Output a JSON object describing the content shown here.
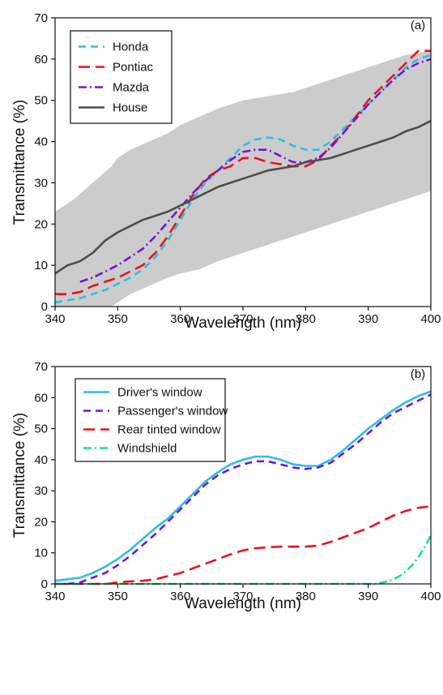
{
  "chart_data": [
    {
      "type": "line",
      "panel_label": "(a)",
      "xlabel": "Wavelength (nm)",
      "ylabel": "Transmittance (%)",
      "xlim": [
        340,
        400
      ],
      "ylim": [
        0,
        70
      ],
      "xticks": [
        340,
        350,
        360,
        370,
        380,
        390,
        400
      ],
      "yticks": [
        0,
        10,
        20,
        30,
        40,
        50,
        60,
        70
      ],
      "grid": false,
      "legend_placement": "top-left",
      "band": {
        "color": "#cccccc",
        "x": [
          340,
          343,
          346,
          349,
          350,
          352,
          355,
          358,
          360,
          363,
          366,
          370,
          374,
          378,
          380,
          384,
          388,
          392,
          396,
          400
        ],
        "upper": [
          23,
          26,
          30,
          34,
          36,
          38,
          40,
          42,
          44,
          46,
          48,
          50,
          51,
          52,
          53,
          55,
          57,
          59,
          61,
          62
        ],
        "lower": [
          -3,
          -3,
          -3,
          -3,
          1,
          3,
          5,
          7,
          8,
          9,
          11,
          13,
          15,
          17,
          18,
          20,
          22,
          24,
          26,
          28
        ]
      },
      "series": [
        {
          "name": "Honda",
          "color": "#2bbfe6",
          "dash": "9,6",
          "x": [
            340,
            342,
            344,
            346,
            348,
            350,
            352,
            354,
            356,
            358,
            360,
            362,
            364,
            366,
            368,
            370,
            372,
            374,
            376,
            378,
            380,
            382,
            384,
            386,
            388,
            390,
            392,
            394,
            396,
            398,
            400
          ],
          "y": [
            1,
            1.5,
            2,
            3,
            4,
            5.5,
            7,
            9,
            12,
            16,
            21,
            26,
            30,
            33,
            36,
            39,
            40.5,
            41,
            40.5,
            39,
            38,
            38,
            40,
            43,
            46,
            49,
            52,
            55,
            58,
            60,
            61
          ]
        },
        {
          "name": "Pontiac",
          "color": "#e8141c",
          "dash": "14,7",
          "x": [
            340,
            342,
            344,
            346,
            348,
            350,
            352,
            354,
            356,
            358,
            360,
            362,
            364,
            366,
            368,
            370,
            372,
            374,
            376,
            378,
            380,
            382,
            384,
            386,
            388,
            390,
            392,
            394,
            396,
            398,
            400
          ],
          "y": [
            3,
            3,
            3.5,
            5,
            6,
            7,
            8.5,
            10,
            13,
            17,
            22,
            27,
            31,
            33,
            34,
            36,
            36,
            35,
            34.5,
            34,
            34,
            35.5,
            39,
            42,
            46,
            50,
            53,
            56,
            59,
            62,
            62
          ]
        },
        {
          "name": "Mazda",
          "color": "#7316d6",
          "dash": "10,4,2,4",
          "x": [
            344,
            346,
            348,
            350,
            352,
            354,
            356,
            358,
            360,
            362,
            364,
            366,
            368,
            370,
            372,
            374,
            376,
            378,
            380,
            382,
            384,
            386,
            388,
            390,
            392,
            394,
            396,
            398,
            400
          ],
          "y": [
            6,
            7,
            8.5,
            10,
            12,
            14,
            17,
            20.5,
            24,
            27.5,
            30.5,
            33,
            35.5,
            37.5,
            38,
            38,
            36.5,
            35,
            35,
            36,
            38.5,
            42,
            45.5,
            49,
            52,
            55,
            57.5,
            59,
            60
          ]
        },
        {
          "name": "House",
          "color": "#4d4d4d",
          "dash": "",
          "x": [
            340,
            342,
            344,
            346,
            348,
            350,
            352,
            354,
            356,
            358,
            360,
            362,
            364,
            366,
            368,
            370,
            372,
            374,
            376,
            378,
            380,
            382,
            384,
            386,
            388,
            390,
            392,
            394,
            396,
            398,
            400
          ],
          "y": [
            8,
            10,
            11,
            13,
            16,
            18,
            19.5,
            21,
            22,
            23,
            24.5,
            26,
            27.5,
            29,
            30,
            31,
            32,
            33,
            33.5,
            34,
            35,
            35.5,
            36,
            37,
            38,
            39,
            40,
            41,
            42.5,
            43.5,
            45
          ]
        }
      ]
    },
    {
      "type": "line",
      "panel_label": "(b)",
      "xlabel": "Wavelength (nm)",
      "ylabel": "Transmittance (%)",
      "xlim": [
        340,
        400
      ],
      "ylim": [
        0,
        70
      ],
      "xticks": [
        340,
        350,
        360,
        370,
        380,
        390,
        400
      ],
      "yticks": [
        0,
        10,
        20,
        30,
        40,
        50,
        60,
        70
      ],
      "grid": false,
      "legend_placement": "top-left",
      "series": [
        {
          "name": "Driver's window",
          "color": "#2bbfe6",
          "dash": "",
          "x": [
            340,
            342,
            344,
            346,
            348,
            350,
            352,
            354,
            356,
            358,
            360,
            362,
            364,
            366,
            368,
            370,
            372,
            374,
            376,
            378,
            380,
            382,
            384,
            386,
            388,
            390,
            392,
            394,
            396,
            398,
            400
          ],
          "y": [
            1,
            1.5,
            2,
            3.5,
            5.5,
            8,
            11,
            14.5,
            18,
            21,
            25,
            29,
            33,
            36,
            38.5,
            40,
            41,
            41,
            40,
            38.5,
            38,
            38,
            40,
            43,
            46.5,
            50,
            53,
            56,
            58.5,
            60.5,
            62
          ]
        },
        {
          "name": "Passenger's window",
          "color": "#7316d6",
          "dash": "9,6",
          "x": [
            340,
            342,
            344,
            346,
            348,
            350,
            352,
            354,
            356,
            358,
            360,
            362,
            364,
            366,
            368,
            370,
            372,
            374,
            376,
            378,
            380,
            382,
            384,
            386,
            388,
            390,
            392,
            394,
            396,
            398,
            400
          ],
          "y": [
            0,
            0,
            0.5,
            2,
            3.5,
            6,
            9,
            12.5,
            16,
            20,
            24,
            28,
            32,
            35,
            37,
            38.5,
            39.5,
            39.5,
            38.5,
            37.5,
            37,
            37.5,
            39,
            42,
            45,
            48.5,
            52,
            55,
            57,
            59,
            61
          ]
        },
        {
          "name": "Rear tinted window",
          "color": "#e8141c",
          "dash": "14,7",
          "x": [
            340,
            344,
            348,
            350,
            352,
            354,
            356,
            358,
            360,
            362,
            364,
            366,
            368,
            370,
            372,
            374,
            376,
            378,
            380,
            382,
            384,
            386,
            388,
            390,
            392,
            394,
            396,
            398,
            400
          ],
          "y": [
            0,
            0,
            0,
            0.5,
            0.8,
            1,
            1.5,
            2.5,
            3.5,
            5,
            6.5,
            8,
            9.5,
            10.8,
            11.5,
            11.8,
            12,
            12,
            12,
            12.3,
            13.5,
            15,
            16.5,
            18,
            20,
            22,
            23.5,
            24.5,
            25
          ]
        },
        {
          "name": "Windshield",
          "color": "#22dd88",
          "dash": "10,4,2,4",
          "x": [
            340,
            350,
            360,
            370,
            380,
            390,
            391,
            392,
            393,
            394,
            395,
            396,
            397,
            398,
            399,
            400
          ],
          "y": [
            0,
            0,
            0,
            0,
            0,
            0,
            0,
            0.3,
            0.8,
            1.5,
            2.5,
            4,
            6,
            8.5,
            12,
            15.5
          ]
        }
      ]
    }
  ]
}
